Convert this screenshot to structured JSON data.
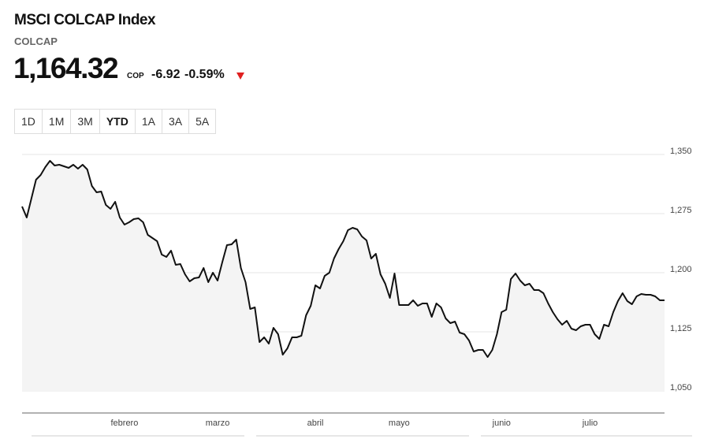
{
  "header": {
    "title": "MSCI COLCAP Index",
    "symbol": "COLCAP",
    "price": "1,164.32",
    "currency": "COP",
    "change": "-6.92",
    "change_percent": "-0.59%"
  },
  "ranges": [
    "1D",
    "1M",
    "3M",
    "YTD",
    "1A",
    "3A",
    "5A"
  ],
  "selected_range": "YTD",
  "chart_data": {
    "type": "line",
    "categories": [
      null,
      null,
      null,
      null,
      null,
      null,
      null,
      null,
      null,
      null,
      null,
      null,
      null,
      null,
      null,
      null,
      null,
      null,
      null,
      null,
      null,
      null,
      "febrero",
      null,
      null,
      null,
      null,
      null,
      null,
      null,
      null,
      null,
      null,
      null,
      null,
      null,
      null,
      null,
      null,
      null,
      null,
      null,
      "marzo",
      null,
      null,
      null,
      null,
      null,
      null,
      null,
      null,
      null,
      null,
      null,
      null,
      null,
      null,
      null,
      null,
      null,
      null,
      null,
      null,
      "abril",
      null,
      null,
      null,
      null,
      null,
      null,
      null,
      null,
      null,
      null,
      null,
      null,
      null,
      null,
      null,
      null,
      null,
      "mayo",
      null,
      null,
      null,
      null,
      null,
      null,
      null,
      null,
      null,
      null,
      null,
      null,
      null,
      null,
      null,
      null,
      null,
      null,
      null,
      null,
      null,
      "junio",
      null,
      null,
      null,
      null,
      null,
      null,
      null,
      null,
      null,
      null,
      null,
      null,
      null,
      null,
      null,
      null,
      null,
      null,
      "julio",
      null,
      null,
      null,
      null,
      null,
      null,
      null,
      null,
      null,
      null,
      null,
      null,
      null,
      null,
      null,
      null
    ],
    "values": [
      1284,
      1270,
      1294,
      1318,
      1324,
      1334,
      1342,
      1336,
      1337,
      1335,
      1333,
      1337,
      1332,
      1337,
      1331,
      1310,
      1302,
      1303,
      1286,
      1281,
      1290,
      1270,
      1261,
      1264,
      1268,
      1269,
      1264,
      1248,
      1244,
      1240,
      1223,
      1220,
      1228,
      1210,
      1211,
      1198,
      1189,
      1193,
      1194,
      1206,
      1188,
      1200,
      1190,
      1213,
      1235,
      1236,
      1242,
      1206,
      1188,
      1154,
      1156,
      1112,
      1118,
      1110,
      1130,
      1122,
      1096,
      1104,
      1118,
      1118,
      1120,
      1146,
      1158,
      1184,
      1180,
      1196,
      1200,
      1218,
      1230,
      1240,
      1254,
      1257,
      1255,
      1246,
      1241,
      1218,
      1224,
      1198,
      1186,
      1168,
      1199,
      1159,
      1159,
      1159,
      1165,
      1158,
      1161,
      1161,
      1144,
      1161,
      1156,
      1142,
      1136,
      1138,
      1124,
      1122,
      1114,
      1100,
      1102,
      1102,
      1093,
      1102,
      1122,
      1150,
      1153,
      1192,
      1199,
      1190,
      1184,
      1186,
      1178,
      1178,
      1174,
      1161,
      1150,
      1141,
      1134,
      1139,
      1129,
      1127,
      1132,
      1134,
      1134,
      1122,
      1116,
      1134,
      1132,
      1150,
      1164,
      1174,
      1164,
      1160,
      1170,
      1173,
      1172,
      1172,
      1170,
      1165,
      1165
    ],
    "color": "#111111",
    "fill": "#f4f4f4",
    "ylim": [
      1050,
      1350
    ],
    "yticks": [
      {
        "value": 1050,
        "label": "1,050"
      },
      {
        "value": 1125,
        "label": "1,125"
      },
      {
        "value": 1200,
        "label": "1,200"
      },
      {
        "value": 1275,
        "label": "1,275"
      },
      {
        "value": 1350,
        "label": "1,350"
      }
    ],
    "grid": true
  }
}
